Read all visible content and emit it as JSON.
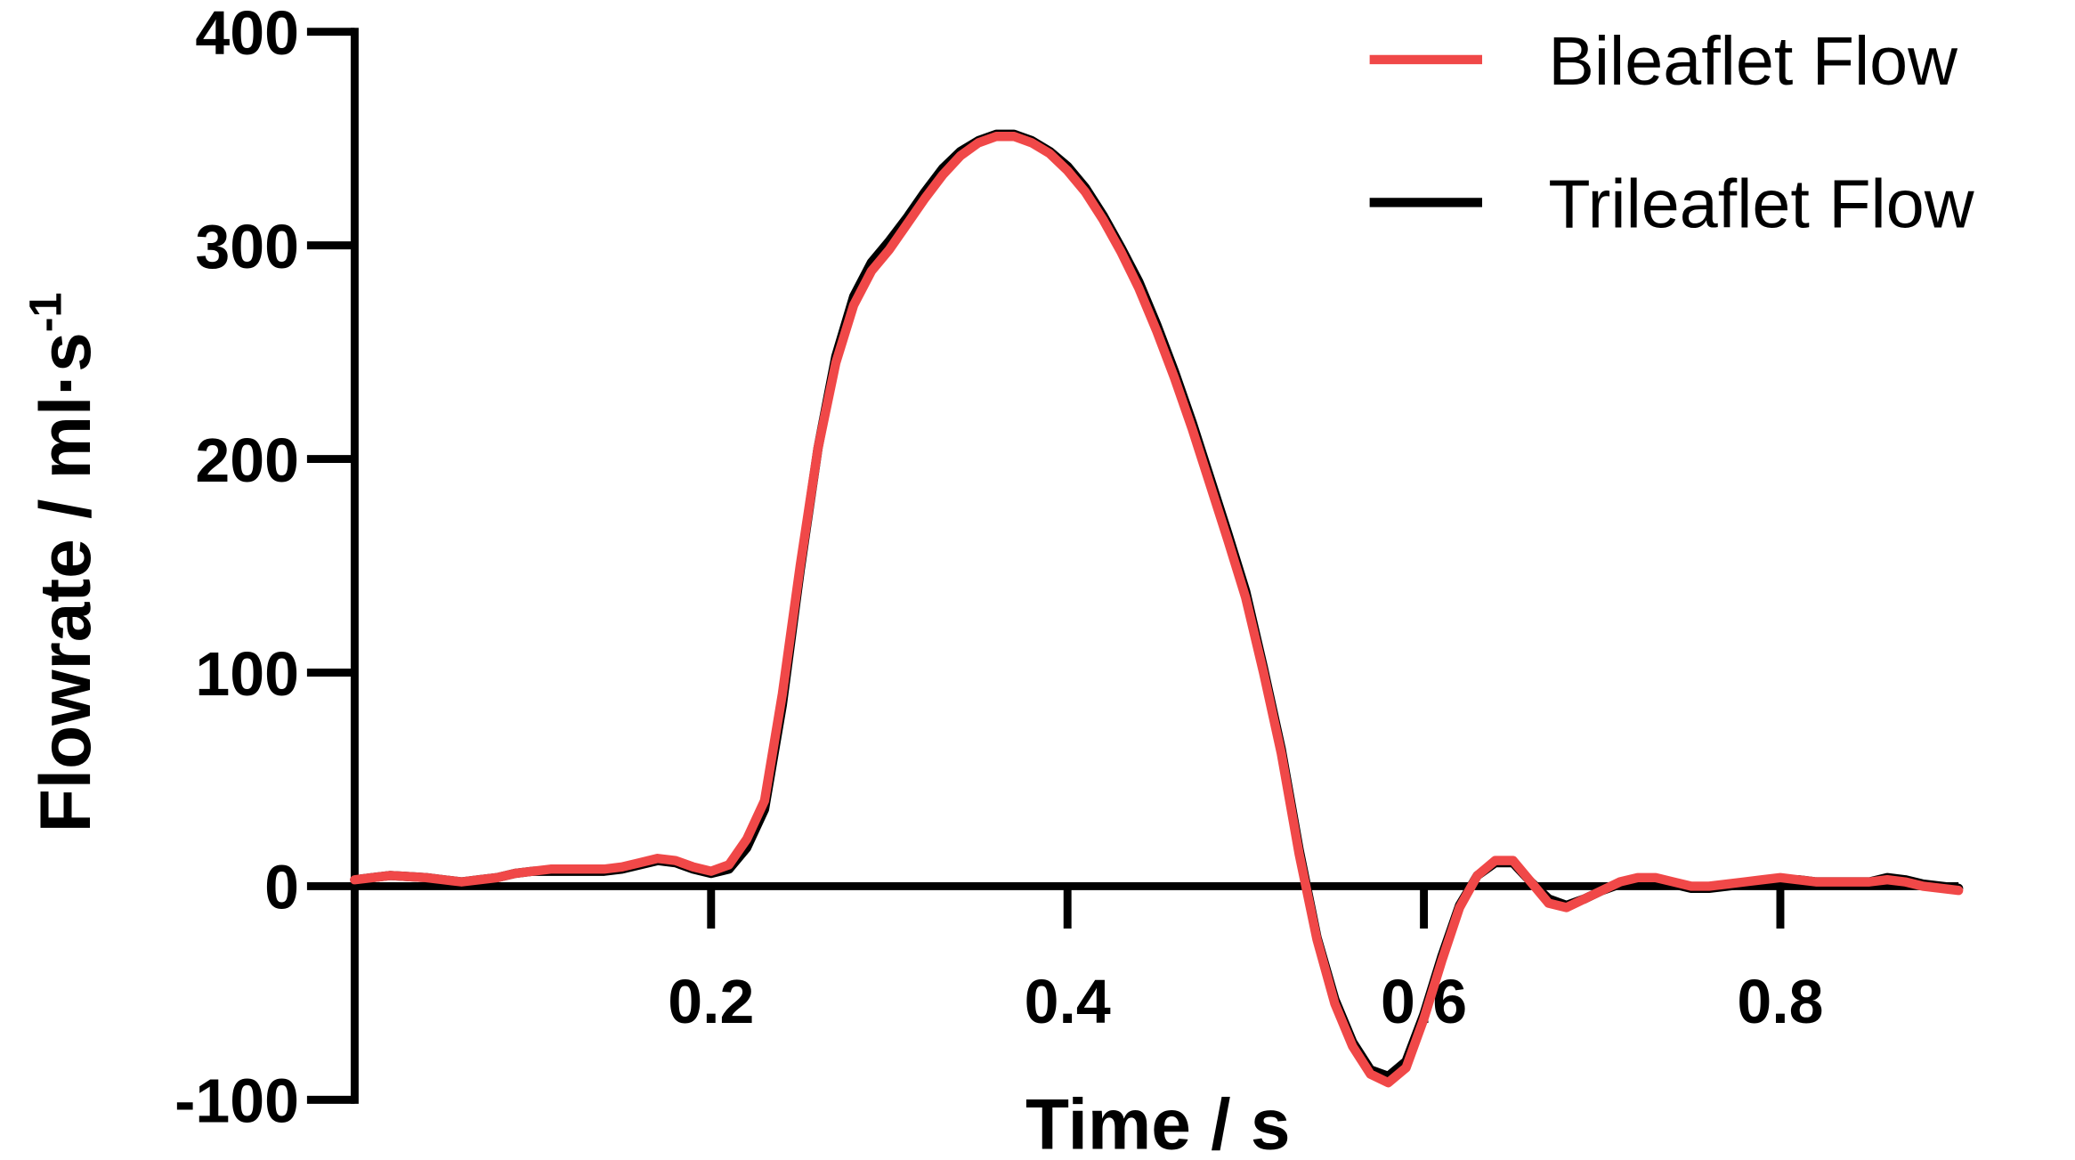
{
  "chart_data": {
    "type": "line",
    "x_label": "Time / s",
    "y_label": {
      "text": "Flowrate / ml·s",
      "superscript": "-1"
    },
    "xlim": [
      0,
      0.9
    ],
    "ylim": [
      -100,
      400
    ],
    "xticks": [
      0.2,
      0.4,
      0.6,
      0.8
    ],
    "yticks": [
      -100,
      0,
      100,
      200,
      300,
      400
    ],
    "legend": "top-right",
    "x": [
      0,
      0.01,
      0.02,
      0.03,
      0.04,
      0.05,
      0.06,
      0.07,
      0.08,
      0.09,
      0.1,
      0.11,
      0.12,
      0.13,
      0.14,
      0.15,
      0.16,
      0.17,
      0.18,
      0.19,
      0.2,
      0.21,
      0.22,
      0.23,
      0.24,
      0.25,
      0.26,
      0.27,
      0.28,
      0.29,
      0.3,
      0.31,
      0.32,
      0.33,
      0.34,
      0.35,
      0.36,
      0.37,
      0.38,
      0.39,
      0.4,
      0.41,
      0.42,
      0.43,
      0.44,
      0.45,
      0.46,
      0.47,
      0.48,
      0.49,
      0.5,
      0.51,
      0.52,
      0.53,
      0.54,
      0.55,
      0.56,
      0.57,
      0.58,
      0.59,
      0.6,
      0.61,
      0.62,
      0.63,
      0.64,
      0.65,
      0.66,
      0.67,
      0.68,
      0.69,
      0.7,
      0.71,
      0.72,
      0.73,
      0.74,
      0.75,
      0.76,
      0.77,
      0.78,
      0.79,
      0.8,
      0.81,
      0.82,
      0.83,
      0.84,
      0.85,
      0.86,
      0.87,
      0.88,
      0.89,
      0.9
    ],
    "series": [
      {
        "name": "Trileaflet Flow",
        "color": "#000000",
        "values": [
          3,
          4,
          5,
          4.5,
          4,
          3,
          2,
          3,
          4,
          6,
          7,
          7,
          7,
          7,
          7,
          8,
          10,
          12,
          11,
          8,
          6,
          8,
          18,
          36,
          85,
          148,
          205,
          248,
          276,
          292,
          302,
          313,
          325,
          336,
          344,
          349,
          352,
          352,
          349,
          344,
          337,
          327,
          314,
          299,
          283,
          263,
          241,
          217,
          191,
          165,
          138,
          102,
          64,
          17,
          -24,
          -53,
          -73,
          -86,
          -89,
          -82,
          -60,
          -33,
          -9,
          5,
          11,
          11,
          2,
          -6,
          -9,
          -6,
          -2,
          1,
          3,
          3,
          1,
          -1,
          -1,
          0,
          1,
          2,
          3,
          3,
          2,
          2,
          2,
          2,
          4,
          3,
          1,
          0,
          -1
        ]
      },
      {
        "name": "Bileaflet Flow",
        "color": "#f04848",
        "values": [
          3,
          4,
          5,
          4.5,
          4,
          3,
          2,
          3,
          4,
          6,
          7,
          8,
          8,
          8,
          8,
          9,
          11,
          13,
          12,
          9,
          7,
          10,
          22,
          40,
          90,
          150,
          205,
          245,
          272,
          288,
          298,
          310,
          322,
          333,
          342,
          348,
          351,
          351,
          348,
          343,
          335,
          325,
          312,
          297,
          280,
          260,
          238,
          214,
          188,
          162,
          135,
          100,
          62,
          15,
          -25,
          -55,
          -75,
          -88,
          -92,
          -85,
          -62,
          -35,
          -10,
          5,
          12,
          12,
          2,
          -8,
          -10,
          -6,
          -2,
          2,
          4,
          4,
          2,
          0,
          0,
          1,
          2,
          3,
          4,
          3,
          2,
          2,
          2,
          2,
          3,
          2,
          0,
          -1,
          -2
        ]
      }
    ]
  }
}
